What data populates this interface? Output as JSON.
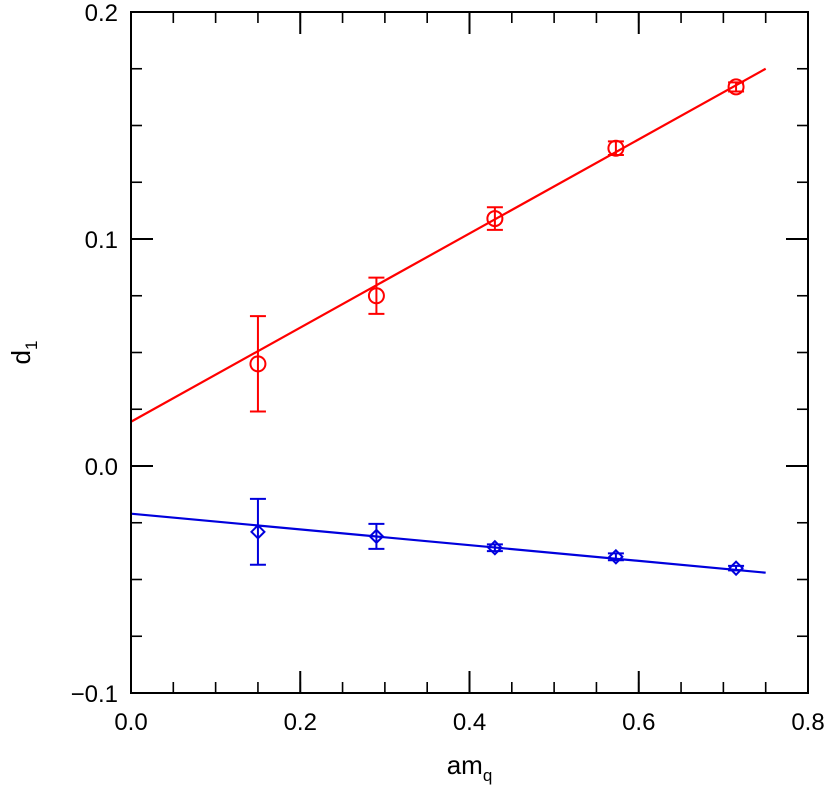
{
  "chart_data": {
    "type": "scatter",
    "xlabel": "am",
    "xlabel_subscript": "q",
    "ylabel": "d",
    "ylabel_subscript": "1",
    "xlim": [
      0.0,
      0.8
    ],
    "ylim": [
      -0.1,
      0.2
    ],
    "x_ticks": [
      0.0,
      0.2,
      0.4,
      0.6,
      0.8
    ],
    "x_tick_labels": [
      "0.0",
      "0.2",
      "0.4",
      "0.6",
      "0.8"
    ],
    "y_ticks": [
      -0.1,
      0.0,
      0.1,
      0.2
    ],
    "y_tick_labels": [
      "−0.1",
      "0.0",
      "0.1",
      "0.2"
    ],
    "x_minor_step": 0.05,
    "y_minor_step": 0.025,
    "grid": false,
    "series": [
      {
        "marker": "circle",
        "color": "#ff0000",
        "x": [
          0.15,
          0.29,
          0.43,
          0.573,
          0.715
        ],
        "y": [
          0.045,
          0.075,
          0.109,
          0.14,
          0.167
        ],
        "err": [
          0.021,
          0.008,
          0.005,
          0.003,
          0.002
        ],
        "fit_line": {
          "x": [
            0.0,
            0.75
          ],
          "y": [
            0.0195,
            0.175
          ]
        }
      },
      {
        "marker": "diamond",
        "color": "#0000dd",
        "x": [
          0.15,
          0.29,
          0.43,
          0.573,
          0.715
        ],
        "y": [
          -0.029,
          -0.031,
          -0.036,
          -0.04,
          -0.045
        ],
        "err": [
          0.0145,
          0.0055,
          0.0015,
          0.0015,
          0.001
        ],
        "fit_line": {
          "x": [
            0.0,
            0.75
          ],
          "y": [
            -0.021,
            -0.047
          ]
        }
      }
    ]
  }
}
